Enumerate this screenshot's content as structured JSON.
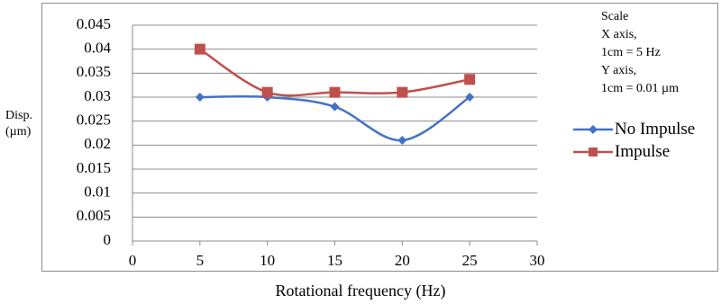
{
  "chart_data": {
    "type": "line",
    "x": [
      5,
      10,
      15,
      20,
      25
    ],
    "series": [
      {
        "name": "No Impulse",
        "values": [
          0.03,
          0.03,
          0.028,
          0.021,
          0.03
        ],
        "color": "#4472C4",
        "marker": "diamond"
      },
      {
        "name": "Impulse",
        "values": [
          0.04,
          0.031,
          0.031,
          0.031,
          0.0337
        ],
        "color": "#C0504D",
        "marker": "square"
      }
    ],
    "xlabel": "Rotational frequency (Hz)",
    "ylabel_lines": [
      "Disp.",
      "(µm)"
    ],
    "xlim": [
      0,
      30
    ],
    "ylim": [
      0,
      0.045
    ],
    "x_ticks": [
      "0",
      "5",
      "10",
      "15",
      "20",
      "25",
      "30"
    ],
    "y_ticks": [
      "0",
      "0.005",
      "0.01",
      "0.015",
      "0.02",
      "0.025",
      "0.03",
      "0.035",
      "0.04",
      "0.045"
    ],
    "grid": "horizontal",
    "smooth": true,
    "legend_position": "right",
    "annotation_lines": [
      "Scale",
      "X axis,",
      "1cm = 5 Hz",
      "Y axis,",
      "1cm = 0.01 µm"
    ]
  }
}
